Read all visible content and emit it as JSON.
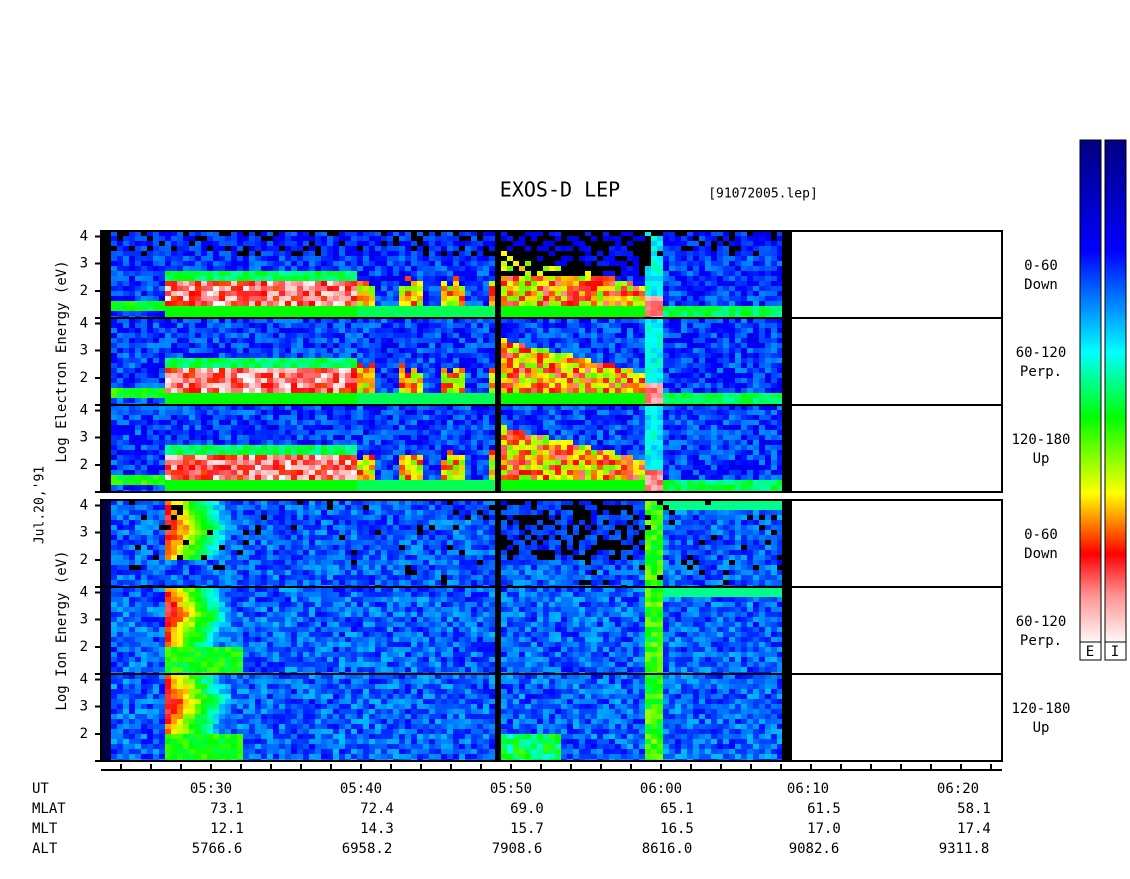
{
  "title": "EXOS-D LEP",
  "file": "[91072005.lep]",
  "date": "Jul.20,'91",
  "ylim": [
    1,
    4.2
  ],
  "yticks": [
    2,
    3,
    4
  ],
  "groups": [
    {
      "ylabel": "Log Electron Energy (eV)",
      "panels": [
        {
          "label": [
            "0-60",
            "Down"
          ]
        },
        {
          "label": [
            "60-120",
            "Perp."
          ]
        },
        {
          "label": [
            "120-180",
            "Up"
          ]
        }
      ]
    },
    {
      "ylabel": "Log Ion Energy (eV)",
      "panels": [
        {
          "label": [
            "0-60",
            "Down"
          ]
        },
        {
          "label": [
            "60-120",
            "Perp."
          ]
        },
        {
          "label": [
            "120-180",
            "Up"
          ]
        }
      ]
    }
  ],
  "ephemeris": [
    {
      "name": "UT",
      "values": [
        "05:30",
        "05:40",
        "05:50",
        "06:00",
        "06:10",
        "06:20"
      ]
    },
    {
      "name": "MLAT",
      "values": [
        "73.1",
        "72.4",
        "69.0",
        "65.1",
        "61.5",
        "58.1"
      ]
    },
    {
      "name": "MLT",
      "values": [
        "12.1",
        "14.3",
        "15.7",
        "16.5",
        "17.0",
        "17.4"
      ]
    },
    {
      "name": "ALT",
      "values": [
        "5766.6",
        "6958.2",
        "7908.6",
        "8616.0",
        "9082.6",
        "9311.8"
      ]
    }
  ],
  "colorbars": [
    "E",
    "I"
  ]
}
